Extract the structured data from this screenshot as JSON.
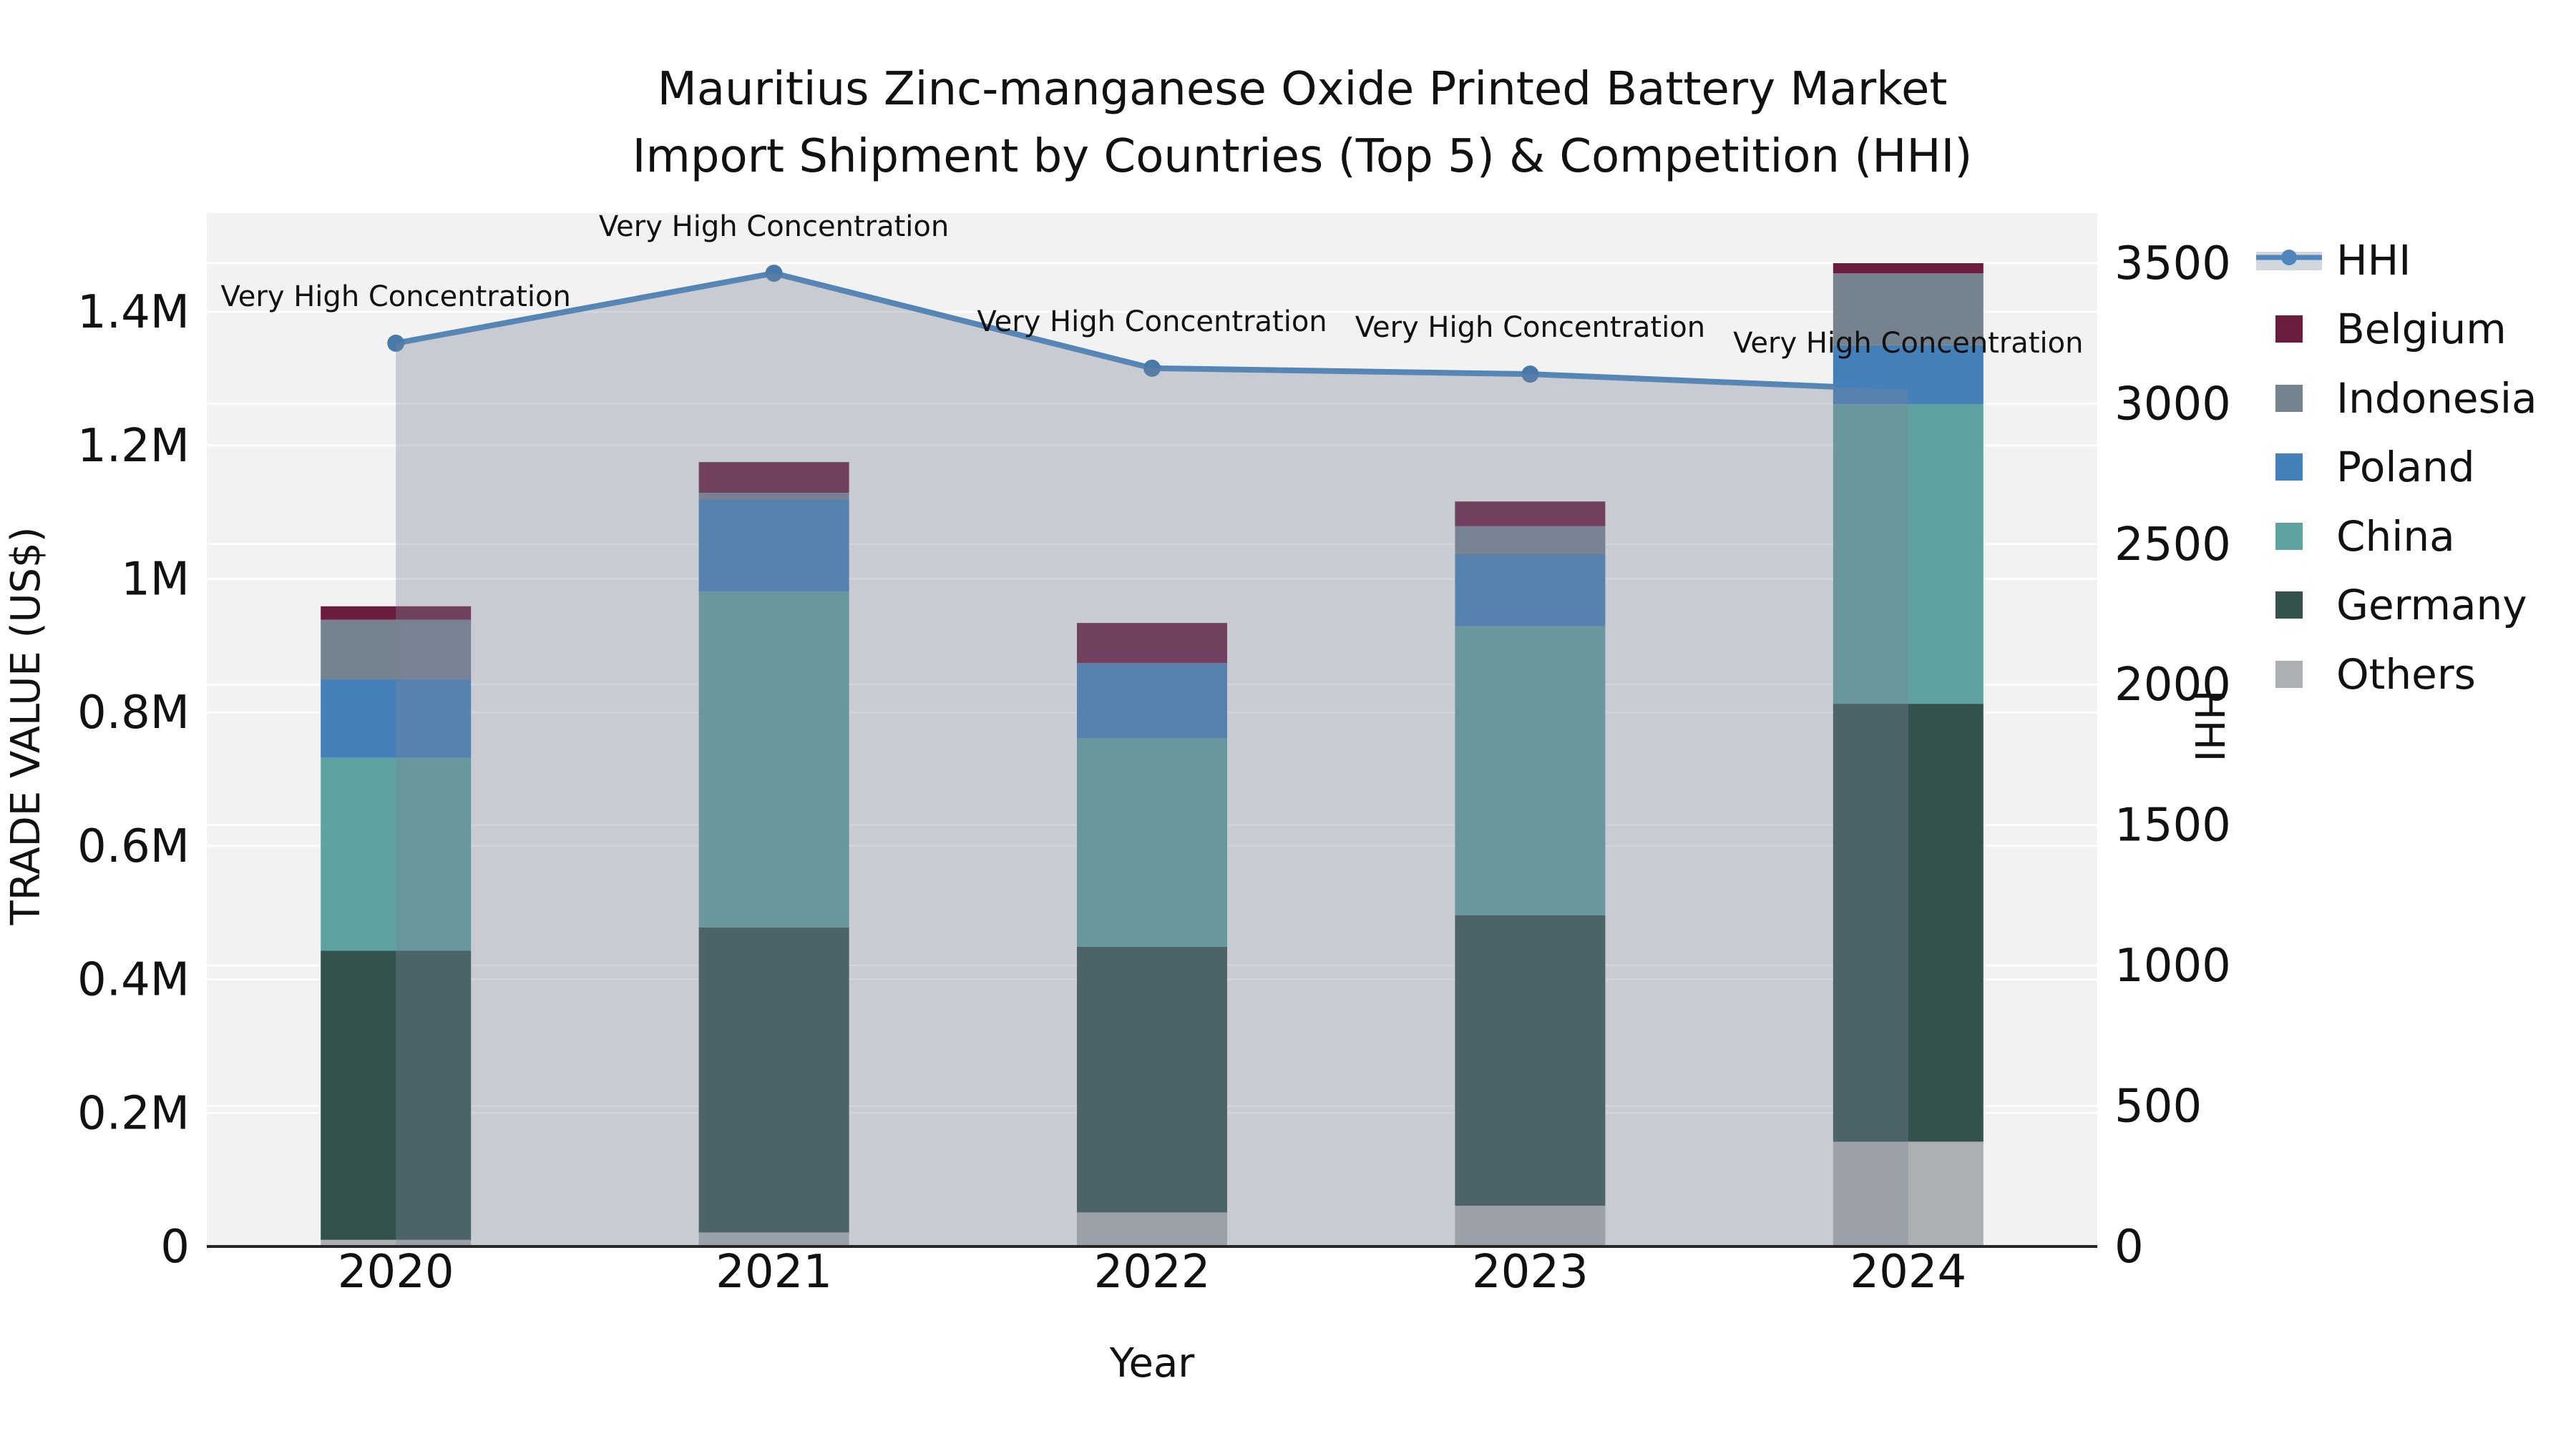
{
  "title": {
    "line1": "Mauritius Zinc-manganese Oxide Printed Battery Market",
    "line2": "Import Shipment by Countries (Top 5) & Competition (HHI)"
  },
  "axis_labels": {
    "x": "Year",
    "y_left": "TRADE VALUE (US$)",
    "y_right": "HHI"
  },
  "y_left_ticks": {
    "labels": [
      "0",
      "0.2M",
      "0.4M",
      "0.6M",
      "0.8M",
      "1M",
      "1.2M",
      "1.4M"
    ],
    "values": [
      0,
      0.2,
      0.4,
      0.6,
      0.8,
      1.0,
      1.2,
      1.4
    ]
  },
  "y_right_ticks": {
    "labels": [
      "0",
      "500",
      "1000",
      "1500",
      "2000",
      "2500",
      "3000",
      "3500"
    ],
    "values": [
      0,
      500,
      1000,
      1500,
      2000,
      2500,
      3000,
      3500
    ]
  },
  "style": {
    "plot_bg": "#F2F2F2",
    "grid": "#FFFFFF",
    "axis_line": "#262626",
    "text": "#111111",
    "area_fill": "rgba(122,133,153,0.35)",
    "legend_band": "#D2D6DD"
  },
  "legend": {
    "items": [
      {
        "label": "HHI",
        "type": "line",
        "color": "#4F86BB"
      },
      {
        "label": "Belgium",
        "type": "swatch",
        "color": "#6B1D40"
      },
      {
        "label": "Indonesia",
        "type": "swatch",
        "color": "#75838F"
      },
      {
        "label": "Poland",
        "type": "swatch",
        "color": "#4481BA"
      },
      {
        "label": "China",
        "type": "swatch",
        "color": "#5FA3A1"
      },
      {
        "label": "Germany",
        "type": "swatch",
        "color": "#33524E"
      },
      {
        "label": "Others",
        "type": "swatch",
        "color": "#ADB0B2"
      }
    ]
  },
  "chart_data": {
    "type": "bar",
    "subtype": "stacked-bars-with-line-overlay",
    "title": "Mauritius Zinc-manganese Oxide Printed Battery Market Import Shipment by Countries (Top 5) & Competition (HHI)",
    "xlabel": "Year",
    "ylabel": "TRADE VALUE (US$)",
    "ylabel_right": "HHI",
    "unit": "US$ millions",
    "categories": [
      "2020",
      "2021",
      "2022",
      "2023",
      "2024"
    ],
    "series": [
      {
        "name": "Others",
        "color": "#ADB0B2",
        "values": [
          0.01,
          0.021,
          0.051,
          0.061,
          0.157
        ]
      },
      {
        "name": "Germany",
        "color": "#33524E",
        "values": [
          0.433,
          0.457,
          0.398,
          0.435,
          0.656
        ]
      },
      {
        "name": "China",
        "color": "#5FA3A1",
        "values": [
          0.289,
          0.503,
          0.312,
          0.433,
          0.449
        ]
      },
      {
        "name": "Poland",
        "color": "#4481BA",
        "values": [
          0.118,
          0.138,
          0.113,
          0.108,
          0.088
        ]
      },
      {
        "name": "Indonesia",
        "color": "#75838F",
        "values": [
          0.089,
          0.01,
          0.0,
          0.042,
          0.108
        ]
      },
      {
        "name": "Belgium",
        "color": "#6B1D40",
        "values": [
          0.02,
          0.046,
          0.06,
          0.037,
          0.015
        ]
      }
    ],
    "totals": [
      0.959,
      1.175,
      0.934,
      1.116,
      1.473
    ],
    "line": {
      "name": "HHI",
      "axis": "right",
      "color": "#4F86BB",
      "marker_color": "#4779AB",
      "values": [
        3215,
        3464,
        3126,
        3105,
        3049
      ],
      "annotation": "Very High Concentration"
    },
    "ylim_left": [
      0,
      1.548
    ],
    "ylim_right": [
      0,
      3678
    ],
    "grid": true,
    "legend_position": "right"
  }
}
